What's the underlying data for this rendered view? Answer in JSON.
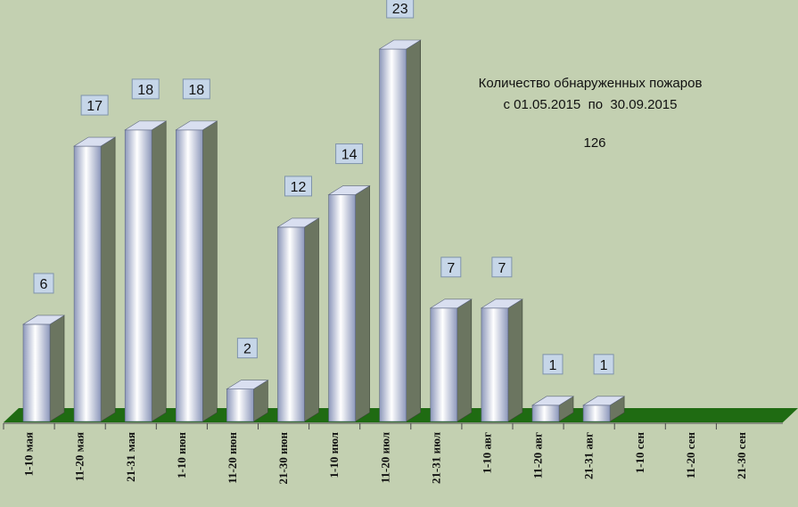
{
  "chart_data": {
    "type": "bar",
    "style": "3d-columns",
    "title": "Количество обнаруженных пожаров",
    "subtitle": "с 01.05.2015  по  30.09.2015",
    "total_label": "126",
    "categories": [
      "1-10   мая",
      "11-20 мая",
      "21-31 мая",
      "1-10   июн",
      "11-20 июн",
      "21-30 июн",
      "1-10   июл",
      "11-20 июл",
      "21-31 июл",
      "1-10    авг",
      "11-20  авг",
      "21-31   авг",
      "1-10   сен",
      "11-20 сен",
      "21-30 сен"
    ],
    "values": [
      6,
      17,
      18,
      18,
      2,
      12,
      14,
      23,
      7,
      7,
      1,
      1,
      null,
      null,
      null
    ],
    "data_labels": [
      "6",
      "17",
      "18",
      "18",
      "2",
      "12",
      "14",
      "23",
      "7",
      "7",
      "1",
      "1",
      "",
      "",
      ""
    ],
    "ylim": [
      0,
      23
    ],
    "grid": false,
    "legend": "none",
    "xlabel": "",
    "ylabel": ""
  },
  "colors": {
    "background": "#c3d0b1",
    "bar_front_light": "#ffffff",
    "bar_front_dark": "#8d98bb",
    "bar_side": "#6b7560",
    "bar_top": "#d9dff0",
    "floor": "#1f6b12",
    "label_box": "#c6d6e8",
    "axis_line": "#4a4a4a"
  }
}
